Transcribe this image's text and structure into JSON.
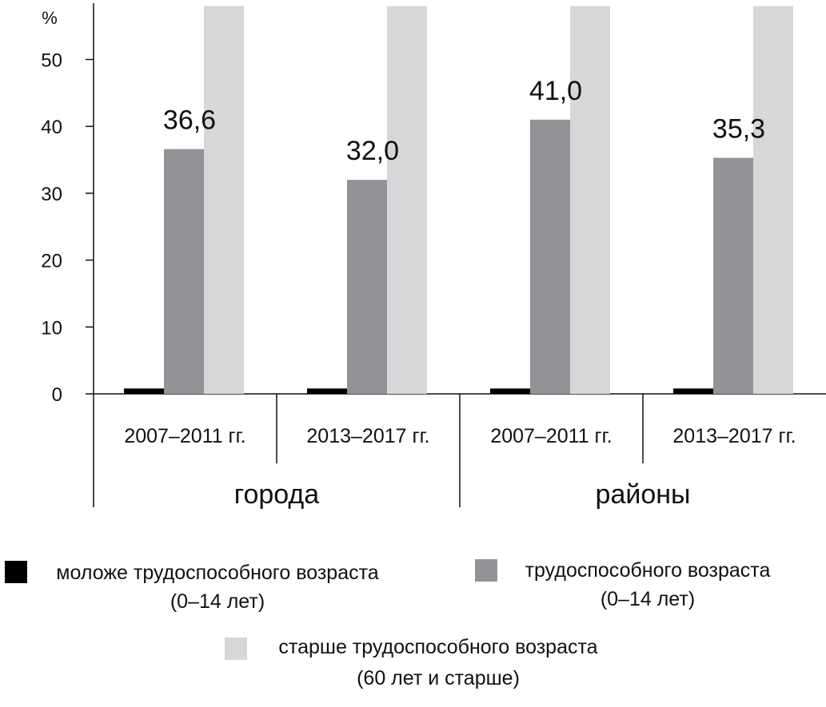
{
  "chart_data": {
    "type": "bar",
    "ylabel": "%",
    "ylim": [
      0,
      58
    ],
    "yticks": [
      0,
      10,
      20,
      30,
      40,
      50
    ],
    "groups": [
      {
        "label": "города",
        "categories": [
          "2007–2011 гг.",
          "2013–2017 гг."
        ]
      },
      {
        "label": "районы",
        "categories": [
          "2007–2011 гг.",
          "2013–2017 гг."
        ]
      }
    ],
    "categories": [
      "2007–2011 гг.",
      "2013–2017 гг.",
      "2007–2011 гг.",
      "2013–2017 гг."
    ],
    "series": [
      {
        "name": "моложе трудоспособного возраста",
        "name2": "(0–14 лет)",
        "color": "#000000",
        "values": [
          0.8,
          0.8,
          0.8,
          0.8
        ],
        "labels": [
          "",
          "",
          "",
          ""
        ]
      },
      {
        "name": "трудоспособного возраста",
        "name2": "(0–14 лет)",
        "color": "#939397",
        "values": [
          36.6,
          32.0,
          41.0,
          35.3
        ],
        "labels": [
          "36,6",
          "32,0",
          "41,0",
          "35,3"
        ]
      },
      {
        "name": "старше трудоспособного возраста",
        "name2": "(60 лет и старше)",
        "color": "#d7d7d9",
        "values": [
          58,
          58,
          58,
          58
        ],
        "labels": [
          "",
          "",
          "",
          ""
        ]
      }
    ],
    "grid": false,
    "legend": "bottom"
  }
}
